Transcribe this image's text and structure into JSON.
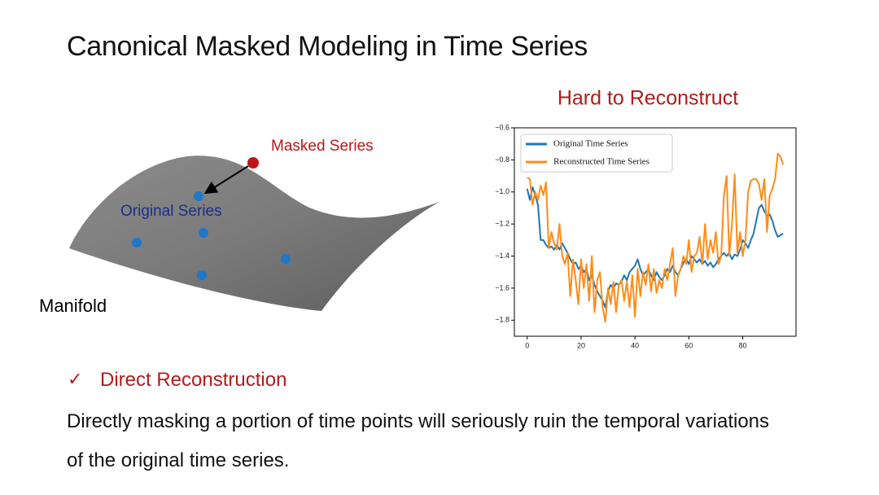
{
  "title": "Canonical Masked Modeling in Time Series",
  "diagram": {
    "labels": {
      "masked": "Masked Series",
      "original": "Original Series",
      "manifold": "Manifold"
    }
  },
  "chart_data": {
    "type": "line",
    "title": "Hard to Reconstruct",
    "x": [
      0,
      1,
      2,
      3,
      4,
      5,
      6,
      7,
      8,
      9,
      10,
      11,
      12,
      13,
      14,
      15,
      16,
      17,
      18,
      19,
      20,
      21,
      22,
      23,
      24,
      25,
      26,
      27,
      28,
      29,
      30,
      31,
      32,
      33,
      34,
      35,
      36,
      37,
      38,
      39,
      40,
      41,
      42,
      43,
      44,
      45,
      46,
      47,
      48,
      49,
      50,
      51,
      52,
      53,
      54,
      55,
      56,
      57,
      58,
      59,
      60,
      61,
      62,
      63,
      64,
      65,
      66,
      67,
      68,
      69,
      70,
      71,
      72,
      73,
      74,
      75,
      76,
      77,
      78,
      79,
      80,
      81,
      82,
      83,
      84,
      85,
      86,
      87,
      88,
      89,
      90,
      91,
      92,
      93,
      94,
      95
    ],
    "series": [
      {
        "name": "Original Time Series",
        "color": "#1f77b4",
        "values": [
          -0.98,
          -1.05,
          -0.97,
          -1.02,
          -1.08,
          -1.3,
          -1.3,
          -1.33,
          -1.35,
          -1.34,
          -1.36,
          -1.33,
          -1.36,
          -1.32,
          -1.35,
          -1.38,
          -1.42,
          -1.45,
          -1.44,
          -1.48,
          -1.46,
          -1.5,
          -1.48,
          -1.55,
          -1.52,
          -1.58,
          -1.62,
          -1.65,
          -1.68,
          -1.72,
          -1.62,
          -1.58,
          -1.6,
          -1.57,
          -1.58,
          -1.56,
          -1.52,
          -1.55,
          -1.5,
          -1.48,
          -1.46,
          -1.42,
          -1.48,
          -1.52,
          -1.5,
          -1.48,
          -1.52,
          -1.55,
          -1.5,
          -1.53,
          -1.55,
          -1.52,
          -1.48,
          -1.5,
          -1.46,
          -1.5,
          -1.52,
          -1.48,
          -1.44,
          -1.42,
          -1.45,
          -1.4,
          -1.42,
          -1.44,
          -1.42,
          -1.45,
          -1.43,
          -1.46,
          -1.44,
          -1.47,
          -1.45,
          -1.42,
          -1.4,
          -1.38,
          -1.4,
          -1.38,
          -1.42,
          -1.39,
          -1.4,
          -1.36,
          -1.3,
          -1.32,
          -1.35,
          -1.3,
          -1.26,
          -1.18,
          -1.1,
          -1.08,
          -1.12,
          -1.15,
          -1.14,
          -1.18,
          -1.24,
          -1.28,
          -1.27,
          -1.26
        ]
      },
      {
        "name": "Reconstructed Time Series",
        "color": "#ff8c1a",
        "values": [
          -0.91,
          -0.92,
          -1.08,
          -1.0,
          -1.05,
          -0.96,
          -1.02,
          -0.94,
          -1.35,
          -1.25,
          -1.32,
          -1.36,
          -1.2,
          -1.4,
          -1.45,
          -1.38,
          -1.65,
          -1.42,
          -1.55,
          -1.7,
          -1.42,
          -1.6,
          -1.45,
          -1.68,
          -1.4,
          -1.75,
          -1.55,
          -1.5,
          -1.72,
          -1.81,
          -1.6,
          -1.7,
          -1.56,
          -1.75,
          -1.58,
          -1.55,
          -1.68,
          -1.56,
          -1.72,
          -1.52,
          -1.78,
          -1.48,
          -1.65,
          -1.5,
          -1.58,
          -1.45,
          -1.62,
          -1.48,
          -1.63,
          -1.55,
          -1.6,
          -1.48,
          -1.55,
          -1.45,
          -1.35,
          -1.65,
          -1.52,
          -1.48,
          -1.4,
          -1.45,
          -1.3,
          -1.5,
          -1.4,
          -1.38,
          -1.28,
          -1.45,
          -1.2,
          -1.42,
          -1.3,
          -1.38,
          -1.25,
          -1.45,
          -1.4,
          -1.02,
          -0.9,
          -1.4,
          -1.2,
          -0.89,
          -1.38,
          -1.25,
          -1.4,
          -1.3,
          -1.0,
          -0.93,
          -0.92,
          -0.92,
          -0.95,
          -1.05,
          -0.92,
          -1.25,
          -1.02,
          -0.98,
          -0.92,
          -0.76,
          -0.78,
          -0.83
        ]
      }
    ],
    "xlim": [
      -4.75,
      99.75
    ],
    "xticks": [
      0,
      20,
      40,
      60,
      80
    ],
    "ylim": [
      -1.9,
      -0.6
    ],
    "yticks": [
      {
        "value": -0.6,
        "label": "−0.6"
      },
      {
        "value": -0.8,
        "label": "−0.8"
      },
      {
        "value": -1.0,
        "label": "−1.0"
      },
      {
        "value": -1.2,
        "label": "−1.2"
      },
      {
        "value": -1.4,
        "label": "−1.4"
      },
      {
        "value": -1.6,
        "label": "−1.6"
      },
      {
        "value": -1.8,
        "label": "−1.8"
      }
    ],
    "grid": false,
    "legend": "upper left"
  },
  "bullet": {
    "marker": "✓",
    "heading": "Direct Reconstruction",
    "body": "Directly masking a portion of time points will seriously ruin the temporal variations of the original time series."
  }
}
